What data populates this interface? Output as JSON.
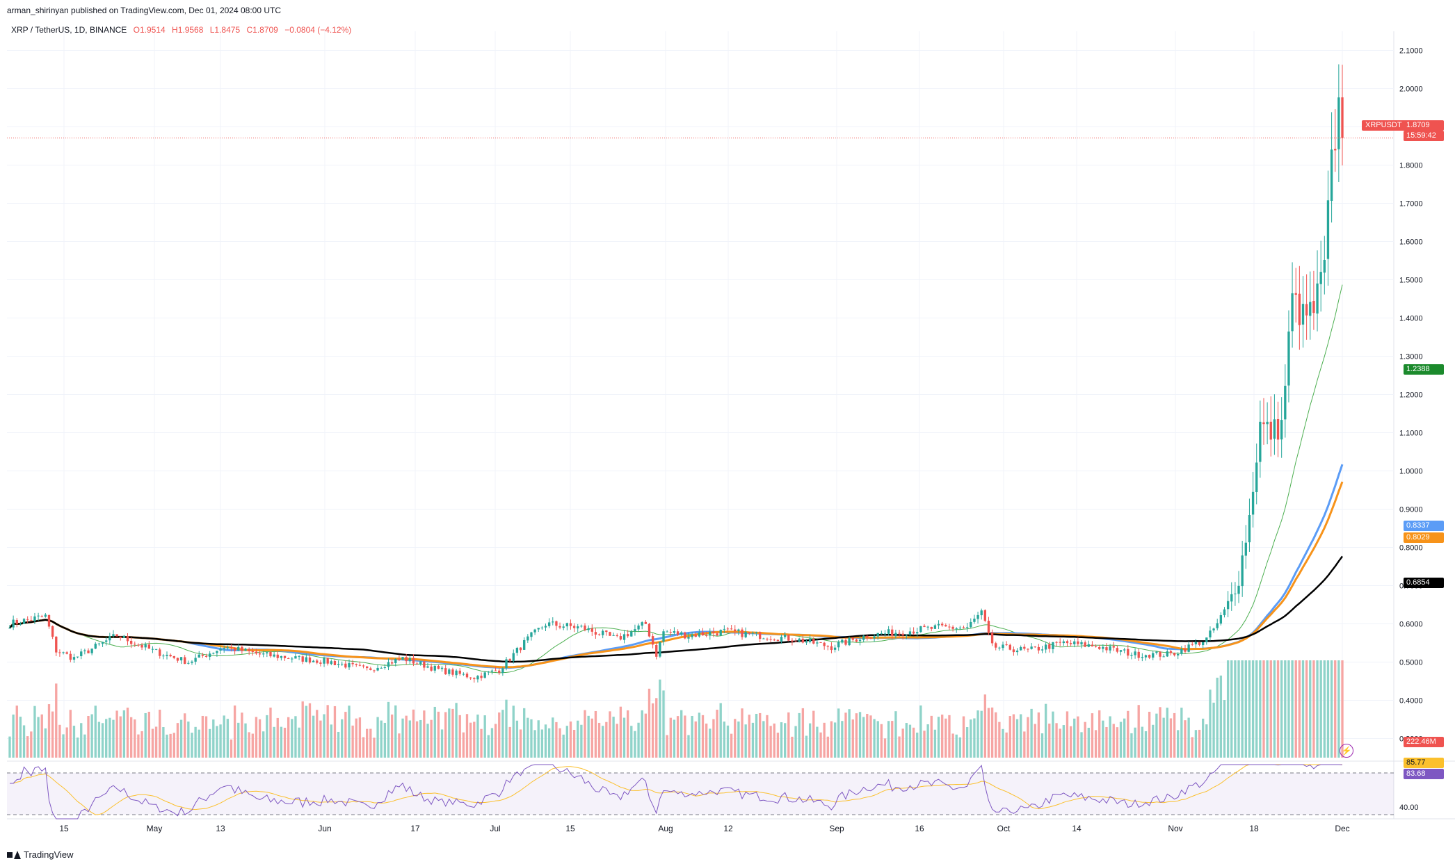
{
  "header": {
    "published_line": "arman_shirinyan published on TradingView.com, Dec 01, 2024 08:00 UTC"
  },
  "legend": {
    "symbol": "XRP / TetherUS, 1D, BINANCE",
    "open": "O1.9514",
    "high": "H1.9568",
    "low": "L1.8475",
    "close": "C1.8709",
    "change": "−0.0804 (−4.12%)"
  },
  "footer": {
    "brand": "TradingView",
    "logo_icon": "tradingview-logo-icon"
  },
  "colors": {
    "up": "#26a69a",
    "down": "#ef5350",
    "vol_up": "#8fd3c9",
    "vol_down": "#f6a5a3",
    "ma_green": "#4caf50",
    "ma_blue": "#5b9cf6",
    "ma_orange": "#f7931a",
    "ma_black": "#000000",
    "rsi_line": "#7e57c2",
    "rsi_ma": "#fbc02d",
    "grid": "#f0f3fa"
  },
  "price_tags": {
    "last_symbol": "XRPUSDT",
    "last_price": "1.8709",
    "countdown": "15:59:42",
    "ma_green_value": "1.2388",
    "ma_blue_value": "0.8337",
    "ma_orange_value": "0.8029",
    "ma_black_value": "0.6854",
    "volume_value": "222.46M",
    "rsi_ma_value": "85.77",
    "rsi_value": "83.68",
    "rsi_axis_label": "40.00"
  },
  "chart_data": {
    "type": "candlestick",
    "y_ticks": [
      "2.1000",
      "2.0000",
      "1.9000",
      "1.8000",
      "1.7000",
      "1.6000",
      "1.5000",
      "1.4000",
      "1.3000",
      "1.2000",
      "1.1000",
      "1.0000",
      "0.9000",
      "0.8000",
      "0.7000",
      "0.6000",
      "0.5000",
      "0.4000",
      "0.3000"
    ],
    "ylim": [
      0.25,
      2.15
    ],
    "x_tick_labels": [
      "15",
      "May",
      "13",
      "Jun",
      "17",
      "Jul",
      "15",
      "Aug",
      "12",
      "Sep",
      "16",
      "Oct",
      "14",
      "Nov",
      "18",
      "Dec"
    ],
    "anchors": [
      [
        0,
        0.6
      ],
      [
        10,
        0.62
      ],
      [
        13,
        0.53
      ],
      [
        18,
        0.51
      ],
      [
        30,
        0.57
      ],
      [
        40,
        0.53
      ],
      [
        50,
        0.5
      ],
      [
        60,
        0.54
      ],
      [
        70,
        0.52
      ],
      [
        80,
        0.51
      ],
      [
        90,
        0.5
      ],
      [
        100,
        0.48
      ],
      [
        110,
        0.51
      ],
      [
        120,
        0.48
      ],
      [
        130,
        0.46
      ],
      [
        137,
        0.48
      ],
      [
        145,
        0.56
      ],
      [
        150,
        0.6
      ],
      [
        160,
        0.59
      ],
      [
        170,
        0.56
      ],
      [
        178,
        0.6
      ],
      [
        181,
        0.52
      ],
      [
        183,
        0.58
      ],
      [
        190,
        0.57
      ],
      [
        200,
        0.58
      ],
      [
        210,
        0.57
      ],
      [
        220,
        0.56
      ],
      [
        230,
        0.54
      ],
      [
        240,
        0.57
      ],
      [
        250,
        0.58
      ],
      [
        260,
        0.59
      ],
      [
        268,
        0.59
      ],
      [
        272,
        0.63
      ],
      [
        275,
        0.54
      ],
      [
        285,
        0.53
      ],
      [
        295,
        0.55
      ],
      [
        305,
        0.54
      ],
      [
        315,
        0.52
      ],
      [
        325,
        0.52
      ],
      [
        335,
        0.56
      ],
      [
        338,
        0.6
      ],
      [
        341,
        0.65
      ],
      [
        344,
        0.72
      ],
      [
        347,
        0.88
      ],
      [
        350,
        1.12
      ],
      [
        353,
        1.1
      ],
      [
        356,
        1.12
      ],
      [
        359,
        1.45
      ],
      [
        362,
        1.4
      ],
      [
        365,
        1.42
      ],
      [
        368,
        1.53
      ],
      [
        370,
        1.8
      ],
      [
        372,
        1.95
      ],
      [
        373,
        1.87
      ]
    ],
    "last_close": 1.8709,
    "rsi_levels": [
      70,
      30
    ],
    "rsi_axis_label": "40.00"
  }
}
